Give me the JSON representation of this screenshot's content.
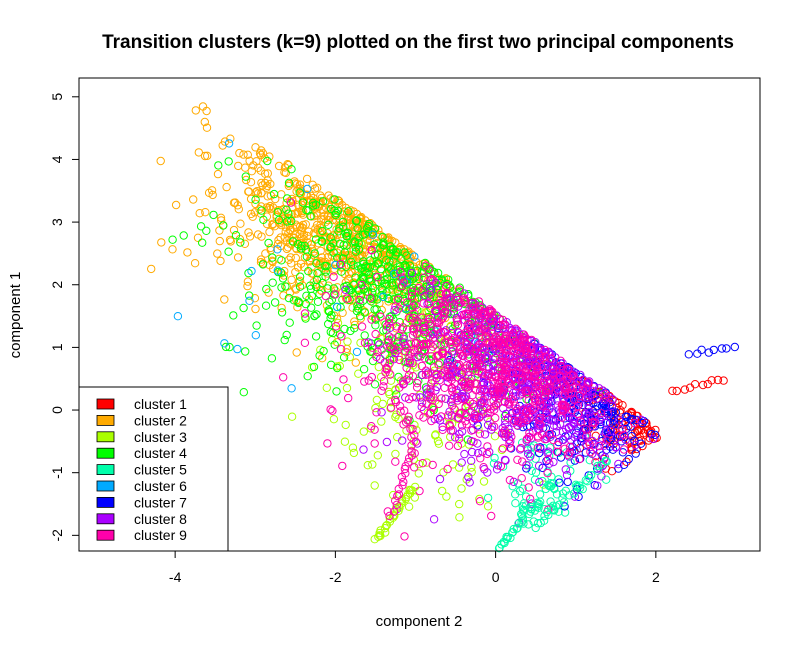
{
  "chart_data": {
    "type": "scatter",
    "title": "Transition clusters (k=9) plotted on the first two principal components",
    "xlabel": "component 2",
    "ylabel": "component 1",
    "xlim": [
      -5.2,
      3.3
    ],
    "ylim": [
      -2.25,
      5.3
    ],
    "xticks": [
      -4,
      -2,
      0,
      2
    ],
    "yticks": [
      -2,
      -1,
      0,
      1,
      2,
      3,
      4,
      5
    ],
    "grid": false,
    "marker": "open-circle",
    "legend_position": "bottom-left",
    "series": [
      {
        "name": "cluster 1",
        "color": "#FF0000",
        "count": 110,
        "region": {
          "cx": 2.0,
          "cy": 0.5,
          "sx": 0.45,
          "sy": 0.6,
          "rot": 0.3
        }
      },
      {
        "name": "cluster 2",
        "color": "#FFAA00",
        "count": 750,
        "region": {
          "cx": -1.3,
          "cy": 3.0,
          "sx": 1.0,
          "sy": 0.75,
          "rot": -0.25
        }
      },
      {
        "name": "cluster 3",
        "color": "#AAFF00",
        "count": 160,
        "region": {
          "cx": -1.0,
          "cy": 0.2,
          "sx": 0.6,
          "sy": 1.0,
          "rot": 0.2
        }
      },
      {
        "name": "cluster 4",
        "color": "#00FF00",
        "count": 550,
        "region": {
          "cx": -0.7,
          "cy": 2.3,
          "sx": 1.1,
          "sy": 0.85,
          "rot": -0.15
        }
      },
      {
        "name": "cluster 5",
        "color": "#00FFAA",
        "count": 70,
        "region": {
          "cx": 0.7,
          "cy": -1.3,
          "sx": 0.35,
          "sy": 0.45,
          "rot": 0.7
        }
      },
      {
        "name": "cluster 6",
        "color": "#00AAFF",
        "count": 30,
        "region": {
          "cx": -0.6,
          "cy": 1.8,
          "sx": 1.2,
          "sy": 0.9,
          "rot": 0.0
        }
      },
      {
        "name": "cluster 7",
        "color": "#0000FF",
        "count": 260,
        "region": {
          "cx": 1.4,
          "cy": 0.4,
          "sx": 0.6,
          "sy": 0.75,
          "rot": 0.3
        }
      },
      {
        "name": "cluster 8",
        "color": "#AA00FF",
        "count": 650,
        "region": {
          "cx": 0.5,
          "cy": 0.7,
          "sx": 0.7,
          "sy": 0.85,
          "rot": 0.15
        }
      },
      {
        "name": "cluster 9",
        "color": "#FF00AA",
        "count": 700,
        "region": {
          "cx": 0.1,
          "cy": 1.0,
          "sx": 0.9,
          "sy": 0.9,
          "rot": 0.05
        }
      }
    ],
    "streaks": [
      {
        "series": "cluster 3",
        "from": [
          -1.5,
          -2.1
        ],
        "to": [
          -1.0,
          -1.2
        ],
        "count": 30
      },
      {
        "series": "cluster 9",
        "from": [
          -1.3,
          -1.7
        ],
        "to": [
          -1.0,
          -0.4
        ],
        "count": 22
      },
      {
        "series": "cluster 5",
        "from": [
          0.05,
          -2.2
        ],
        "to": [
          0.55,
          -1.45
        ],
        "count": 30
      },
      {
        "series": "cluster 5",
        "from": [
          0.5,
          -1.85
        ],
        "to": [
          1.4,
          -0.8
        ],
        "count": 25
      },
      {
        "series": "cluster 1",
        "from": [
          2.2,
          0.3
        ],
        "to": [
          2.85,
          0.5
        ],
        "count": 10
      },
      {
        "series": "cluster 7",
        "from": [
          2.4,
          0.9
        ],
        "to": [
          3.0,
          1.0
        ],
        "count": 8
      }
    ]
  }
}
